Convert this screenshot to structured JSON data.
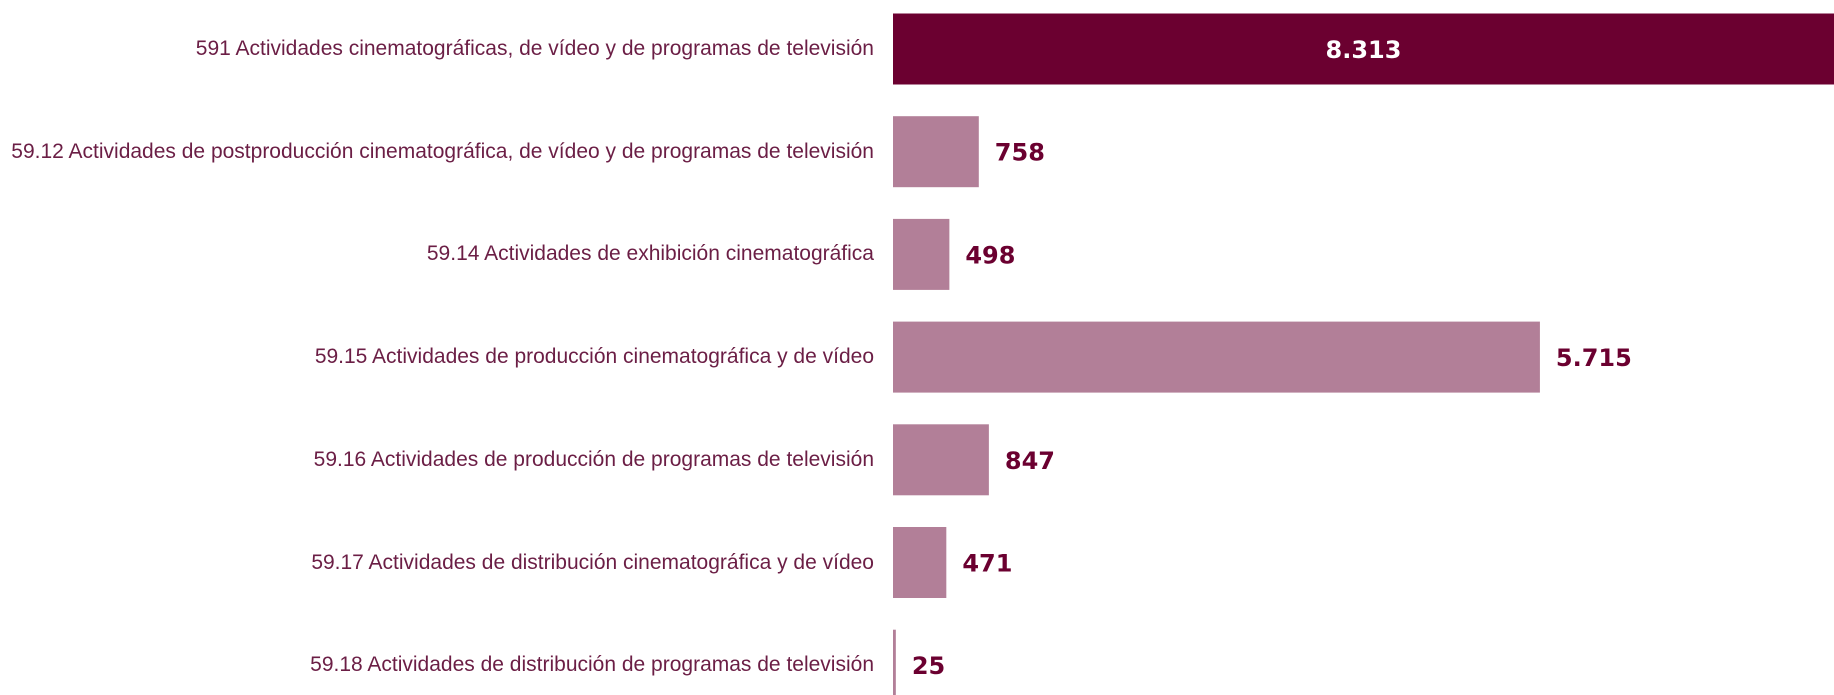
{
  "chart_data": {
    "type": "hbar",
    "categories": [
      "591 Actividades cinematográficas, de vídeo y de programas de televisión",
      "59.12 Actividades de postproducción cinematográfica, de vídeo y de programas de televisión",
      "59.14 Actividades de exhibición cinematográfica",
      "59.15 Actividades de producción cinematográfica y de vídeo",
      "59.16 Actividades de producción de programas de televisión",
      "59.17 Actividades de distribución cinematográfica y de vídeo",
      "59.18 Actividades de distribución de programas de televisión"
    ],
    "values": [
      8313,
      758,
      498,
      5715,
      847,
      471,
      25
    ],
    "value_labels": [
      "8.313",
      "758",
      "498",
      "5.715",
      "847",
      "471",
      "25"
    ],
    "colors": [
      "#6b0030",
      "#b27f98",
      "#b27f98",
      "#b27f98",
      "#b27f98",
      "#b27f98",
      "#b27f98"
    ]
  }
}
